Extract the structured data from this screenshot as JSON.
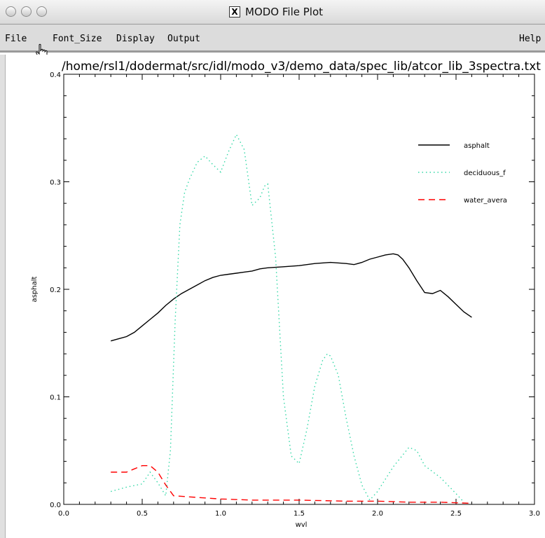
{
  "window": {
    "title": "MODO File Plot",
    "x_icon": "X"
  },
  "menu": {
    "file": "File",
    "font_size": "Font_Size",
    "display": "Display",
    "output": "Output",
    "help": "Help"
  },
  "chart_data": {
    "type": "line",
    "title": "/home/rsl1/dodermat/src/idl/modo_v3/demo_data/spec_lib/atcor_lib_3spectra.txt",
    "xlabel": "wvl",
    "ylabel": "asphalt",
    "xlim": [
      0.0,
      3.0
    ],
    "ylim": [
      0.0,
      0.4
    ],
    "xticks": [
      "0.0",
      "0.5",
      "1.0",
      "1.5",
      "2.0",
      "2.5",
      "3.0"
    ],
    "yticks": [
      "0.0",
      "0.1",
      "0.2",
      "0.3",
      "0.4"
    ],
    "legend_position": "top-right",
    "series": [
      {
        "name": "asphalt",
        "color": "#000000",
        "style": "solid",
        "x": [
          0.3,
          0.35,
          0.4,
          0.45,
          0.5,
          0.55,
          0.6,
          0.65,
          0.7,
          0.75,
          0.8,
          0.85,
          0.9,
          0.95,
          1.0,
          1.05,
          1.1,
          1.15,
          1.2,
          1.25,
          1.3,
          1.4,
          1.5,
          1.6,
          1.7,
          1.8,
          1.85,
          1.9,
          1.95,
          2.0,
          2.05,
          2.1,
          2.13,
          2.16,
          2.2,
          2.25,
          2.3,
          2.35,
          2.4,
          2.45,
          2.5,
          2.55,
          2.6
        ],
        "y": [
          0.152,
          0.154,
          0.156,
          0.16,
          0.166,
          0.172,
          0.178,
          0.185,
          0.191,
          0.196,
          0.2,
          0.204,
          0.208,
          0.211,
          0.213,
          0.214,
          0.215,
          0.216,
          0.217,
          0.219,
          0.22,
          0.221,
          0.222,
          0.224,
          0.225,
          0.224,
          0.223,
          0.225,
          0.228,
          0.23,
          0.232,
          0.233,
          0.232,
          0.228,
          0.22,
          0.208,
          0.197,
          0.196,
          0.199,
          0.193,
          0.186,
          0.179,
          0.174
        ]
      },
      {
        "name": "deciduous_f",
        "color": "#33d8a6",
        "style": "dotted",
        "x": [
          0.3,
          0.4,
          0.5,
          0.55,
          0.6,
          0.65,
          0.68,
          0.71,
          0.74,
          0.77,
          0.8,
          0.85,
          0.9,
          0.95,
          1.0,
          1.05,
          1.1,
          1.15,
          1.2,
          1.25,
          1.28,
          1.3,
          1.35,
          1.4,
          1.45,
          1.5,
          1.55,
          1.6,
          1.65,
          1.68,
          1.7,
          1.75,
          1.8,
          1.85,
          1.9,
          1.95,
          2.0,
          2.1,
          2.2,
          2.25,
          2.3,
          2.4,
          2.5,
          2.55
        ],
        "y": [
          0.012,
          0.016,
          0.019,
          0.03,
          0.02,
          0.008,
          0.05,
          0.17,
          0.26,
          0.29,
          0.302,
          0.318,
          0.324,
          0.316,
          0.309,
          0.328,
          0.344,
          0.33,
          0.278,
          0.285,
          0.296,
          0.298,
          0.23,
          0.1,
          0.045,
          0.038,
          0.07,
          0.11,
          0.134,
          0.14,
          0.138,
          0.12,
          0.08,
          0.045,
          0.018,
          0.004,
          0.012,
          0.035,
          0.053,
          0.05,
          0.036,
          0.025,
          0.01,
          0.002
        ]
      },
      {
        "name": "water_avera",
        "color": "#ff0000",
        "style": "dashed",
        "x": [
          0.3,
          0.4,
          0.45,
          0.5,
          0.55,
          0.6,
          0.65,
          0.7,
          0.8,
          0.9,
          1.0,
          1.2,
          1.5,
          1.8,
          2.0,
          2.2,
          2.4,
          2.6
        ],
        "y": [
          0.03,
          0.03,
          0.033,
          0.036,
          0.036,
          0.03,
          0.018,
          0.008,
          0.007,
          0.006,
          0.005,
          0.004,
          0.004,
          0.003,
          0.003,
          0.002,
          0.002,
          0.001
        ]
      }
    ]
  }
}
